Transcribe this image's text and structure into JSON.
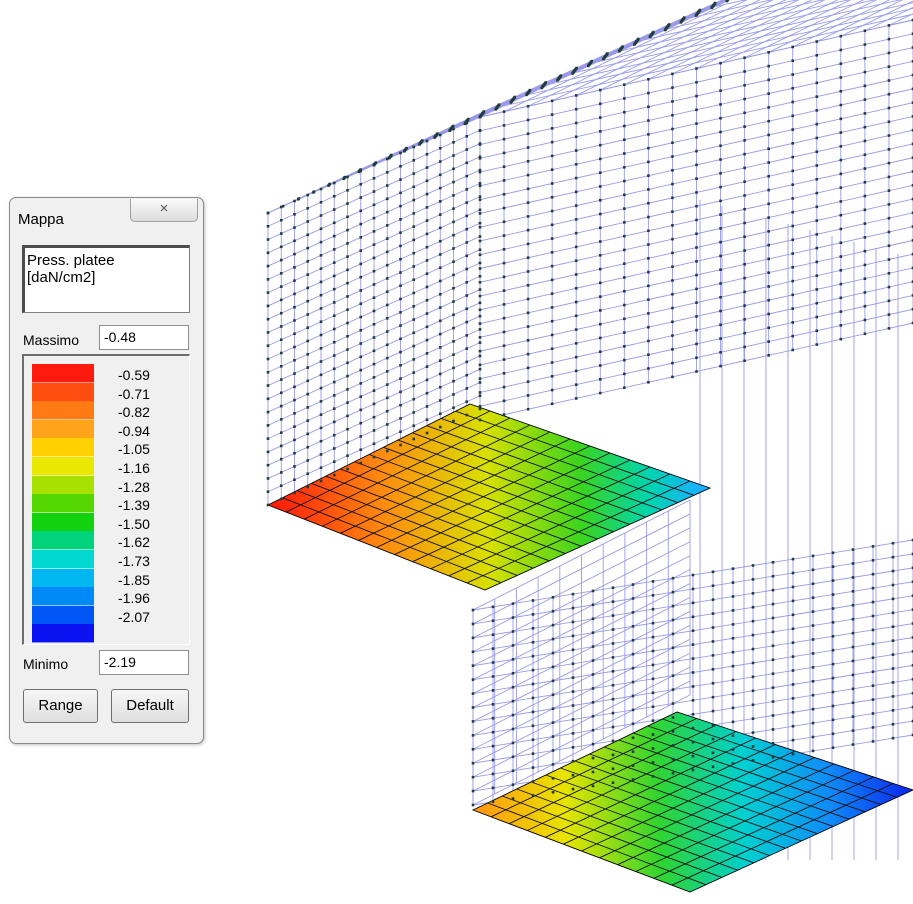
{
  "dialog": {
    "title": "Mappa",
    "close_label": "×",
    "description": "Press. platee\n[daN/cm2]",
    "max_label": "Massimo",
    "max_value": "-0.48",
    "min_label": "Minimo",
    "min_value": "-2.19",
    "range_button": "Range",
    "default_button": "Default"
  },
  "legend": {
    "ticks": [
      "-0.59",
      "-0.71",
      "-0.82",
      "-0.94",
      "-1.05",
      "-1.16",
      "-1.28",
      "-1.39",
      "-1.50",
      "-1.62",
      "-1.73",
      "-1.85",
      "-1.96",
      "-2.07"
    ],
    "colors": [
      "#ff1a0d",
      "#ff4d10",
      "#ff7a12",
      "#ffa31a",
      "#ffd000",
      "#e9e800",
      "#a8e000",
      "#55d700",
      "#12d20f",
      "#00d37c",
      "#00d8d0",
      "#00b7f0",
      "#008af8",
      "#0055f5",
      "#0a12f0"
    ]
  },
  "viewport": {
    "mesh_color": "#9a9ae8",
    "node_color": "#203c3c"
  }
}
